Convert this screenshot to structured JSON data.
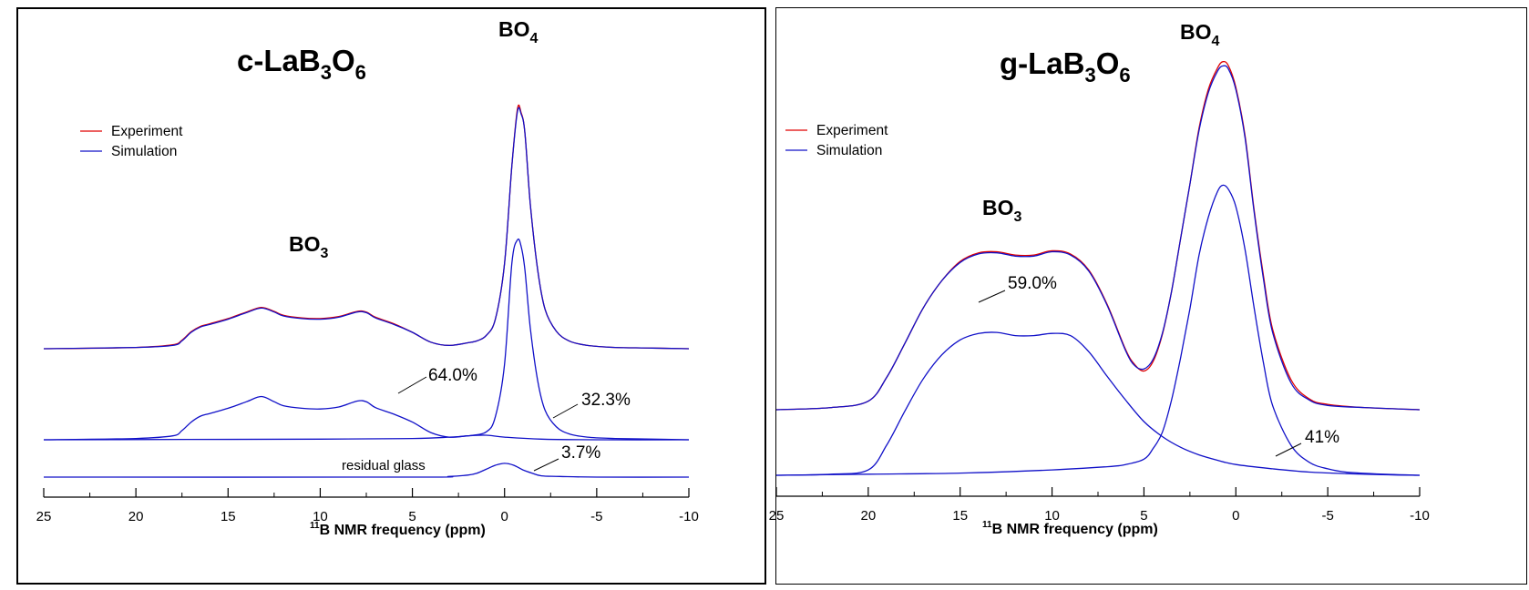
{
  "chart_data": [
    {
      "type": "line",
      "title": "c-LaB3O6",
      "title_main": "c-LaB",
      "title_sub1": "3",
      "title_mid": "O",
      "title_sub2": "6",
      "xlabel_sup": "11",
      "xlabel": "B NMR frequency (ppm)",
      "xlim": [
        25,
        -10
      ],
      "xticks": [
        25,
        20,
        15,
        10,
        5,
        0,
        -5,
        -10
      ],
      "xtick_labels": [
        "25",
        "20",
        "15",
        "10",
        "5",
        "0",
        "-5",
        "-10"
      ],
      "grid": false,
      "legend_position": "upper-left",
      "colors": {
        "experiment": "#e00000",
        "simulation": "#1010c8"
      },
      "legend": [
        {
          "name": "Experiment",
          "color": "#e00000"
        },
        {
          "name": "Simulation",
          "color": "#1010c8"
        }
      ],
      "annotations": {
        "bo4_main": "BO",
        "bo4_sub": "4",
        "bo3_main": "BO",
        "bo3_sub": "3",
        "pct_bo3": "64.0%",
        "pct_bo4": "32.3%",
        "pct_glass": "3.7%",
        "glass_label": "residual glass"
      },
      "series": [
        {
          "name": "Experiment",
          "x": [
            25,
            20,
            18,
            17.5,
            17,
            16.5,
            16,
            15,
            14,
            13.2,
            12.5,
            12,
            11,
            10,
            9,
            8,
            7.5,
            7,
            6,
            5,
            4,
            3,
            2,
            1.5,
            1,
            0.5,
            0,
            -0.4,
            -0.7,
            -0.9,
            -1.1,
            -1.4,
            -1.8,
            -2.2,
            -2.8,
            -3.5,
            -4.5,
            -6,
            -8,
            -10
          ],
          "values": [
            0,
            0.02,
            0.06,
            0.13,
            0.26,
            0.34,
            0.38,
            0.46,
            0.56,
            0.63,
            0.57,
            0.51,
            0.47,
            0.46,
            0.49,
            0.57,
            0.56,
            0.48,
            0.38,
            0.25,
            0.1,
            0.05,
            0.09,
            0.12,
            0.2,
            0.45,
            1.3,
            2.8,
            3.66,
            3.6,
            3.3,
            2.2,
            1.2,
            0.6,
            0.27,
            0.12,
            0.05,
            0.02,
            0.01,
            0.0
          ]
        },
        {
          "name": "Simulation",
          "x": [
            25,
            20,
            18,
            17.5,
            17,
            16.5,
            16,
            15,
            14,
            13.2,
            12.5,
            12,
            11,
            10,
            9,
            8,
            7.5,
            7,
            6,
            5,
            4,
            3,
            2,
            1.5,
            1,
            0.5,
            0,
            -0.4,
            -0.7,
            -0.9,
            -1.1,
            -1.4,
            -1.8,
            -2.2,
            -2.8,
            -3.5,
            -4.5,
            -6,
            -8,
            -10
          ],
          "values": [
            0,
            0.02,
            0.05,
            0.12,
            0.25,
            0.33,
            0.37,
            0.45,
            0.55,
            0.62,
            0.56,
            0.5,
            0.46,
            0.45,
            0.48,
            0.56,
            0.55,
            0.47,
            0.37,
            0.25,
            0.1,
            0.05,
            0.09,
            0.12,
            0.2,
            0.45,
            1.3,
            2.8,
            3.62,
            3.58,
            3.3,
            2.2,
            1.2,
            0.6,
            0.27,
            0.12,
            0.05,
            0.02,
            0.01,
            0.0
          ]
        },
        {
          "name": "",
          "x": [
            25,
            20,
            18,
            17.5,
            17,
            16.5,
            16,
            15,
            14,
            13.2,
            12.5,
            12,
            11,
            10,
            9,
            8,
            7.5,
            7,
            6,
            5,
            4,
            3,
            2,
            1,
            0,
            -2,
            -5,
            -10
          ],
          "values": [
            0,
            0.02,
            0.06,
            0.14,
            0.27,
            0.36,
            0.4,
            0.48,
            0.58,
            0.66,
            0.58,
            0.52,
            0.48,
            0.47,
            0.5,
            0.59,
            0.58,
            0.49,
            0.39,
            0.27,
            0.11,
            0.04,
            0.06,
            0.07,
            0.04,
            0.01,
            0,
            0
          ]
        },
        {
          "name": "",
          "x": [
            25,
            10,
            5,
            3,
            2,
            1,
            0.5,
            0,
            -0.4,
            -0.7,
            -0.9,
            -1.1,
            -1.4,
            -1.8,
            -2.2,
            -2.8,
            -3.5,
            -4.5,
            -6,
            -8,
            -10
          ],
          "values": [
            0,
            0.01,
            0.02,
            0.04,
            0.06,
            0.12,
            0.35,
            1.15,
            2.7,
            3.05,
            2.95,
            2.6,
            1.7,
            0.9,
            0.45,
            0.2,
            0.09,
            0.04,
            0.02,
            0.01,
            0
          ]
        },
        {
          "name": "",
          "x": [
            25,
            5,
            3,
            2,
            1.5,
            1,
            0.5,
            0,
            -0.5,
            -1,
            -1.5,
            -2,
            -3,
            -5,
            -10
          ],
          "values": [
            0,
            0,
            0.01,
            0.03,
            0.06,
            0.12,
            0.18,
            0.21,
            0.18,
            0.11,
            0.06,
            0.02,
            0.01,
            0,
            0
          ]
        }
      ]
    },
    {
      "type": "line",
      "title": "g-LaB3O6",
      "title_main": "g-LaB",
      "title_sub1": "3",
      "title_mid": "O",
      "title_sub2": "6",
      "xlabel_sup": "11",
      "xlabel": "B NMR frequency (ppm)",
      "xlim": [
        25,
        -10
      ],
      "xticks": [
        25,
        20,
        15,
        10,
        5,
        0,
        -5,
        -10
      ],
      "xtick_labels": [
        "25",
        "20",
        "15",
        "10",
        "5",
        "0",
        "-5",
        "-10"
      ],
      "grid": false,
      "legend_position": "upper-left",
      "colors": {
        "experiment": "#e00000",
        "simulation": "#1010c8"
      },
      "legend": [
        {
          "name": "Experiment",
          "color": "#e00000"
        },
        {
          "name": "Simulation",
          "color": "#1010c8"
        }
      ],
      "annotations": {
        "bo4_main": "BO",
        "bo4_sub": "4",
        "bo3_main": "BO",
        "bo3_sub": "3",
        "pct_bo3": "59.0%",
        "pct_bo4": "41%"
      },
      "series": [
        {
          "name": "Experiment",
          "x": [
            25,
            22,
            20,
            19,
            18,
            17,
            16,
            15,
            14,
            13,
            12,
            11,
            10,
            9,
            8,
            7,
            6,
            5.5,
            5,
            4.5,
            4,
            3.5,
            3,
            2.5,
            2,
            1.5,
            1,
            0.7,
            0.4,
            0,
            -0.5,
            -1,
            -1.5,
            -2,
            -3,
            -4,
            -5,
            -7,
            -10
          ],
          "values": [
            0,
            0.02,
            0.08,
            0.3,
            0.62,
            0.95,
            1.2,
            1.38,
            1.46,
            1.47,
            1.44,
            1.44,
            1.48,
            1.45,
            1.3,
            0.98,
            0.56,
            0.42,
            0.36,
            0.45,
            0.7,
            1.1,
            1.6,
            2.1,
            2.62,
            2.98,
            3.18,
            3.24,
            3.2,
            3.0,
            2.55,
            1.85,
            1.25,
            0.75,
            0.28,
            0.1,
            0.05,
            0.02,
            0
          ]
        },
        {
          "name": "Simulation",
          "x": [
            25,
            22,
            20,
            19,
            18,
            17,
            16,
            15,
            14,
            13,
            12,
            11,
            10,
            9,
            8,
            7,
            6,
            5.5,
            5,
            4.5,
            4,
            3.5,
            3,
            2.5,
            2,
            1.5,
            1,
            0.7,
            0.4,
            0,
            -0.5,
            -1,
            -1.5,
            -2,
            -3,
            -4,
            -5,
            -7,
            -10
          ],
          "values": [
            0,
            0.02,
            0.08,
            0.3,
            0.62,
            0.95,
            1.2,
            1.37,
            1.45,
            1.46,
            1.43,
            1.43,
            1.47,
            1.44,
            1.29,
            0.97,
            0.55,
            0.41,
            0.38,
            0.47,
            0.71,
            1.1,
            1.6,
            2.1,
            2.6,
            2.95,
            3.15,
            3.2,
            3.17,
            2.98,
            2.53,
            1.83,
            1.22,
            0.72,
            0.25,
            0.09,
            0.04,
            0.02,
            0
          ]
        },
        {
          "name": "",
          "x": [
            25,
            22,
            20,
            19,
            18,
            17,
            16,
            15,
            14,
            13,
            12,
            11,
            10,
            9,
            8,
            7,
            6,
            5,
            4,
            3,
            2,
            1,
            0,
            -2,
            -4,
            -6,
            -8,
            -10
          ],
          "values": [
            0,
            0.01,
            0.05,
            0.28,
            0.6,
            0.9,
            1.12,
            1.26,
            1.32,
            1.33,
            1.3,
            1.3,
            1.32,
            1.3,
            1.15,
            0.92,
            0.7,
            0.5,
            0.36,
            0.26,
            0.19,
            0.14,
            0.1,
            0.06,
            0.03,
            0.015,
            0.005,
            0
          ]
        },
        {
          "name": "",
          "x": [
            25,
            20,
            15,
            10,
            7,
            6,
            5,
            4.5,
            4,
            3.5,
            3,
            2.5,
            2,
            1.5,
            1,
            0.7,
            0.4,
            0,
            -0.5,
            -1,
            -1.5,
            -2,
            -3,
            -4,
            -5,
            -6,
            -8,
            -10
          ],
          "values": [
            0,
            0.01,
            0.02,
            0.05,
            0.08,
            0.1,
            0.15,
            0.25,
            0.4,
            0.7,
            1.1,
            1.55,
            2.05,
            2.4,
            2.64,
            2.7,
            2.66,
            2.5,
            2.1,
            1.55,
            1.05,
            0.65,
            0.28,
            0.12,
            0.06,
            0.03,
            0.01,
            0
          ]
        }
      ]
    }
  ]
}
